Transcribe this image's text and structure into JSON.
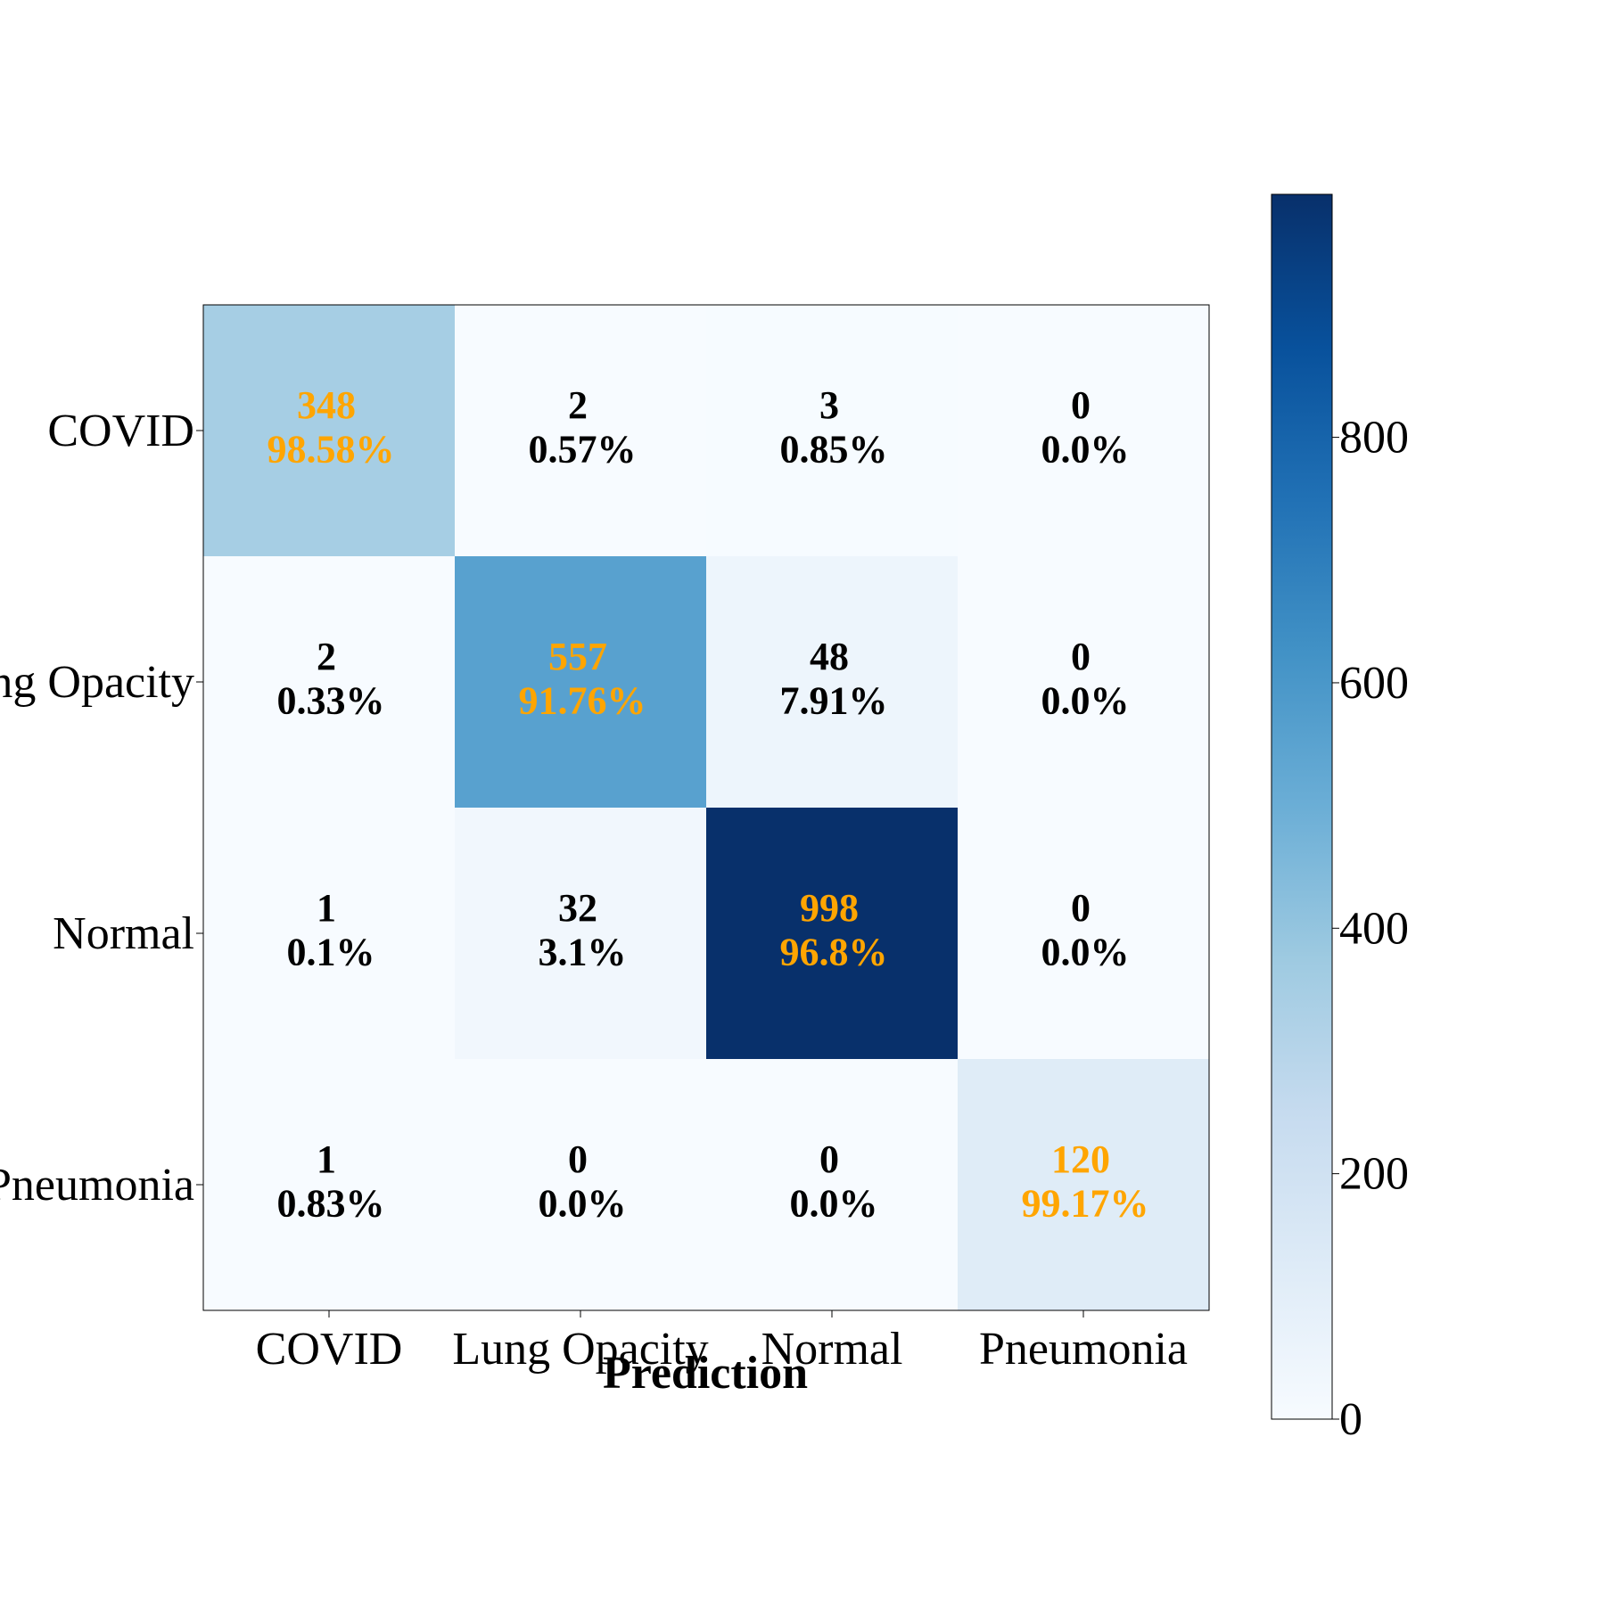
{
  "chart_data": {
    "type": "heatmap",
    "title": "",
    "xlabel": "Prediction",
    "ylabel": "",
    "x_categories": [
      "COVID",
      "Lung Opacity",
      "Normal",
      "Pneumonia"
    ],
    "y_categories": [
      "COVID",
      "Lung Opacity",
      "Normal",
      "Pneumonia"
    ],
    "values": [
      [
        348,
        2,
        3,
        0
      ],
      [
        2,
        557,
        48,
        0
      ],
      [
        1,
        32,
        998,
        0
      ],
      [
        1,
        0,
        0,
        120
      ]
    ],
    "percentages": [
      [
        "98.58%",
        "0.57%",
        "0.85%",
        "0.0%"
      ],
      [
        "0.33%",
        "91.76%",
        "7.91%",
        "0.0%"
      ],
      [
        "0.1%",
        "3.1%",
        "96.8%",
        "0.0%"
      ],
      [
        "0.83%",
        "0.0%",
        "0.0%",
        "99.17%"
      ]
    ],
    "colormap": "Blues",
    "colorbar": {
      "range": [
        0,
        998
      ],
      "ticks": [
        0,
        200,
        400,
        600,
        800
      ]
    },
    "diagonal_text_color": "#ffa500",
    "offdiagonal_text_color": "#000000",
    "grid": false,
    "legend": "colorbar-right"
  }
}
